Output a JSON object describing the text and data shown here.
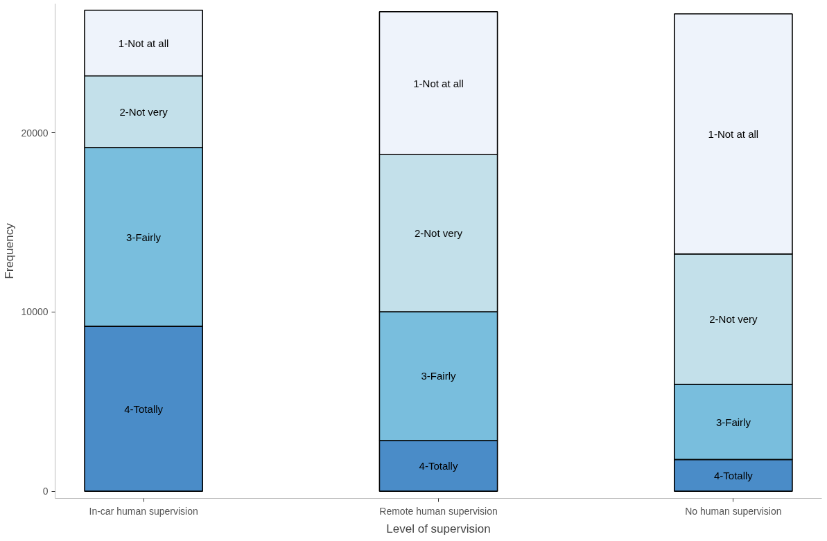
{
  "chart_data": {
    "type": "bar",
    "stacked": true,
    "xlabel": "Level of supervision",
    "ylabel": "Frequency",
    "categories": [
      "In-car human supervision",
      "Remote human supervision",
      "No human supervision"
    ],
    "series": [
      {
        "name": "4-Totally",
        "color": "#4a8cc8",
        "values": [
          9200,
          2830,
          1770
        ]
      },
      {
        "name": "3-Fairly",
        "color": "#79bedd",
        "values": [
          9980,
          7190,
          4200
        ]
      },
      {
        "name": "2-Not very",
        "color": "#c3e0ea",
        "values": [
          4000,
          8760,
          7270
        ]
      },
      {
        "name": "1-Not at all",
        "color": "#eef3fb",
        "values": [
          3660,
          7980,
          13400
        ]
      }
    ],
    "ylim": [
      -400,
      27200
    ],
    "yticks": [
      0,
      10000,
      20000
    ],
    "grid": false,
    "legend": false
  }
}
